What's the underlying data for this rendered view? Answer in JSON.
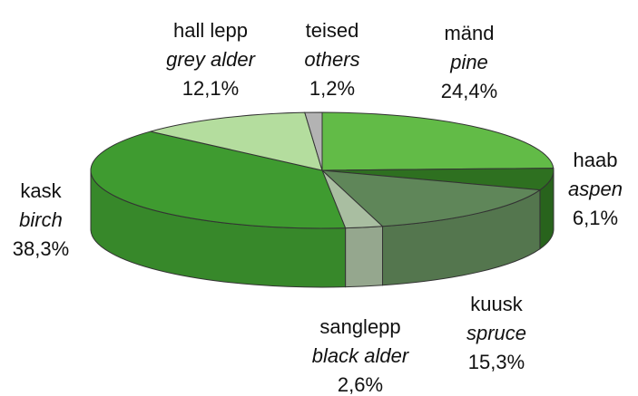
{
  "chart_data": {
    "type": "pie",
    "categories": [
      "mänd",
      "haab",
      "kuusk",
      "sanglepp",
      "kask",
      "hall lepp",
      "teised"
    ],
    "english_names": [
      "pine",
      "aspen",
      "spruce",
      "black alder",
      "birch",
      "grey alder",
      "others"
    ],
    "values": [
      24.4,
      6.1,
      15.3,
      2.6,
      38.3,
      12.1,
      1.2
    ],
    "value_labels": [
      "24,4%",
      "6,1%",
      "15,3%",
      "2,6%",
      "38,3%",
      "12,1%",
      "1,2%"
    ],
    "colors": [
      "#62bb47",
      "#2e7020",
      "#5f8659",
      "#a9bea1",
      "#3f9b30",
      "#b4dd9e",
      "#b3b3b3"
    ]
  }
}
